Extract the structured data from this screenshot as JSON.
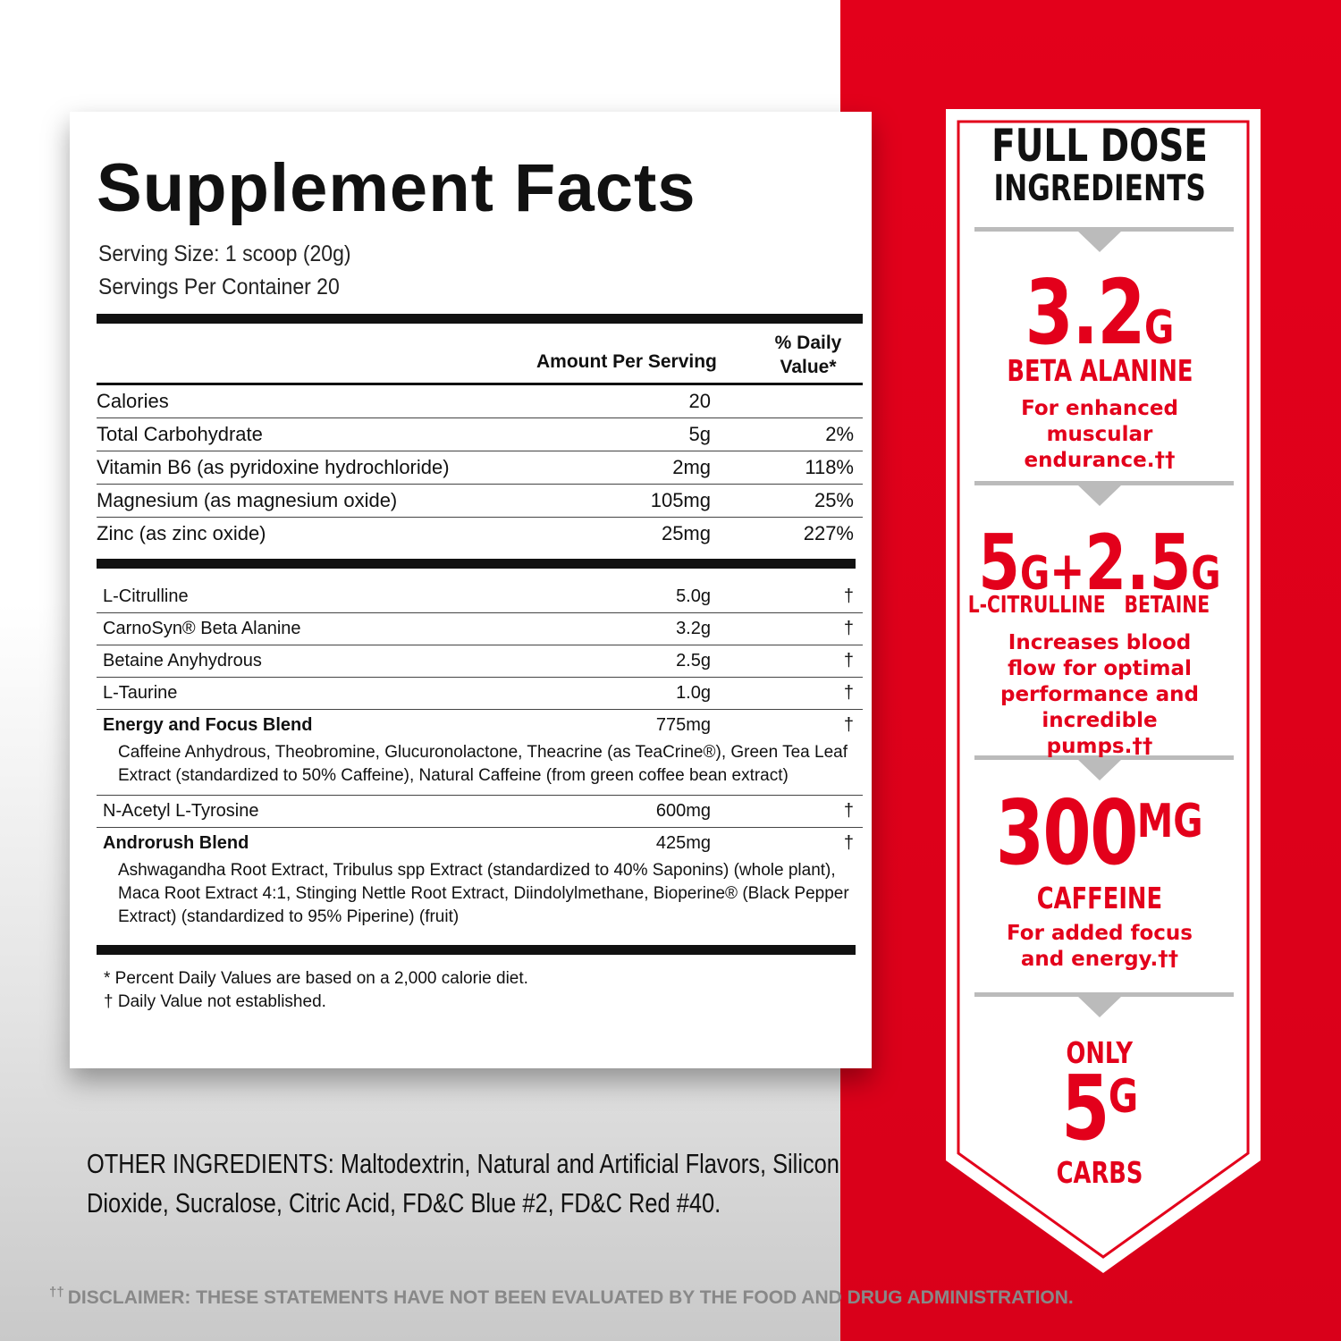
{
  "facts": {
    "title": "Supplement Facts",
    "serving_size": "Serving Size: 1 scoop (20g)",
    "servings_per_container": "Servings Per Container 20",
    "header": {
      "amount": "Amount Per Serving",
      "dv": "% Daily Value*"
    },
    "nutrients": [
      {
        "name": "Calories",
        "amount": "20"
      },
      {
        "name": "Total Carbohydrate",
        "amount": "5g",
        "dv": "2%"
      },
      {
        "name": "Vitamin B6 (as pyridoxine hydrochloride)",
        "amount": "2mg",
        "dv": "118%"
      },
      {
        "name": "Magnesium (as magnesium oxide)",
        "amount": "105mg",
        "dv": "25%"
      },
      {
        "name": "Zinc (as zinc oxide)",
        "amount": "25mg",
        "dv": "227%"
      }
    ],
    "ingredients": [
      {
        "name": "L-Citrulline",
        "amount": "5.0g",
        "dv": "†"
      },
      {
        "name": "CarnoSyn® Beta Alanine",
        "amount": "3.2g",
        "dv": "†"
      },
      {
        "name": "Betaine Anyhydrous",
        "amount": "2.5g",
        "dv": "†"
      },
      {
        "name": "L-Taurine",
        "amount": "1.0g",
        "dv": "†"
      },
      {
        "name": "Energy and Focus Blend",
        "amount": "775mg",
        "dv": "†",
        "detail": "Caffeine Anhydrous, Theobromine, Glucuronolactone, Theacrine (as TeaCrine®), Green Tea Leaf Extract (standardized to 50% Caffeine), Natural Caffeine (from green coffee bean extract)"
      },
      {
        "name": "N-Acetyl L-Tyrosine",
        "amount": "600mg",
        "dv": "†"
      },
      {
        "name": "Androrush Blend",
        "amount": "425mg",
        "dv": "†",
        "detail": "Ashwagandha Root Extract, Tribulus spp Extract (standardized to 40% Saponins) (whole plant), Maca Root Extract 4:1, Stinging Nettle Root Extract, Diindolylmethane, Bioperine® (Black Pepper Extract) (standardized to 95% Piperine) (fruit)"
      }
    ],
    "footnotes": [
      "* Percent Daily Values are based on a 2,000 calorie diet.",
      "† Daily Value not established."
    ]
  },
  "other_ingredients": {
    "label": "OTHER INGREDIENTS:",
    "text": "Maltodextrin, Natural and Artificial Flavors, Silicon Dioxide, Sucralose, Citric Acid, FD&C Blue #2, FD&C Red #40."
  },
  "disclaimer": {
    "mark": "††",
    "text": "DISCLAIMER: THESE STATEMENTS HAVE NOT BEEN EVALUATED BY THE FOOD AND DRUG ADMINISTRATION."
  },
  "banner": {
    "title": [
      "FULL DOSE",
      "INGREDIENTS"
    ],
    "beta": {
      "number": "3.2",
      "unit": "G",
      "label": "BETA ALANINE",
      "text": "For enhanced muscular endurance.††"
    },
    "pump": {
      "number_1": "5",
      "unit_1": "G",
      "plus": "+",
      "number_2": "2.5",
      "unit_2": "G",
      "label_1": "L-CITRULLINE",
      "label_2": "BETAINE",
      "text": "Increases blood flow for optimal performance and incredible pumps.††"
    },
    "caffeine": {
      "number": "300",
      "unit": "MG",
      "label": "CAFFEINE",
      "text": "For added focus and energy.††"
    },
    "carbs": {
      "top": "ONLY",
      "number": "5",
      "unit": "G",
      "label": "CARBS"
    }
  }
}
